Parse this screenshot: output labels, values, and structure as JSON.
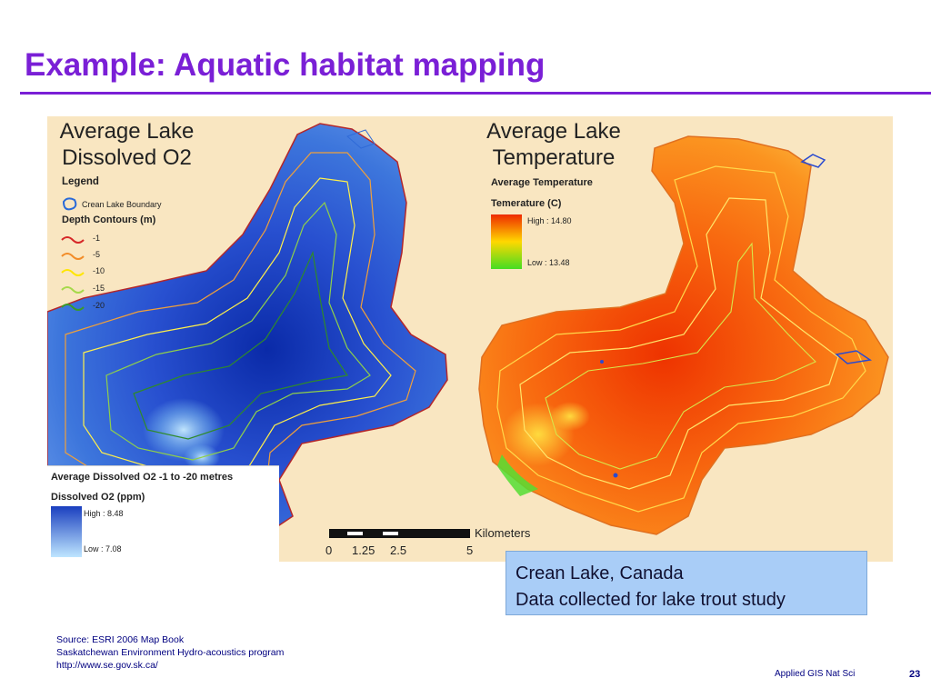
{
  "slide": {
    "title": "Example:  Aquatic habitat mapping",
    "title_color": "#7a1fd6"
  },
  "map_left": {
    "heading_line1": "Average Lake",
    "heading_line2": "Dissolved O2",
    "legend_title": "Legend",
    "boundary_label": "Crean Lake Boundary",
    "contours_title": "Depth Contours (m)",
    "contours": [
      {
        "label": "-1",
        "color": "#d62728"
      },
      {
        "label": "-5",
        "color": "#f28c28"
      },
      {
        "label": "-10",
        "color": "#ffe600"
      },
      {
        "label": "-15",
        "color": "#a6d94a"
      },
      {
        "label": "-20",
        "color": "#3a9a2a"
      }
    ],
    "o2_legend_title": "Average Dissolved O2 -1 to -20 metres",
    "o2_unit_title": "Dissolved O2 (ppm)",
    "o2_high": "High : 8.48",
    "o2_low": "Low : 7.08",
    "o2_high_color": "#1a3fbf",
    "o2_low_color": "#bfe6ff"
  },
  "map_right": {
    "heading_line1": "Average Lake",
    "heading_line2": "Temperature",
    "legend_title": "Average Temperature",
    "unit_title": "Temerature (C)",
    "high": "High : 14.80",
    "low": "Low : 13.48",
    "high_color": "#ee2a00",
    "low_color": "#44dd22"
  },
  "scale_bar": {
    "unit": "Kilometers",
    "ticks": [
      "0",
      "1.25",
      "2.5",
      "5"
    ]
  },
  "info_box": {
    "line1": "Crean Lake, Canada",
    "line2": "Data collected for lake trout study"
  },
  "source": {
    "line1": "Source: ESRI 2006 Map Book",
    "line2": "Saskatchewan Environment Hydro-acoustics program",
    "line3": "http://www.se.gov.sk.ca/"
  },
  "footer": {
    "text": "Applied GIS Nat Sci",
    "page": "23"
  }
}
